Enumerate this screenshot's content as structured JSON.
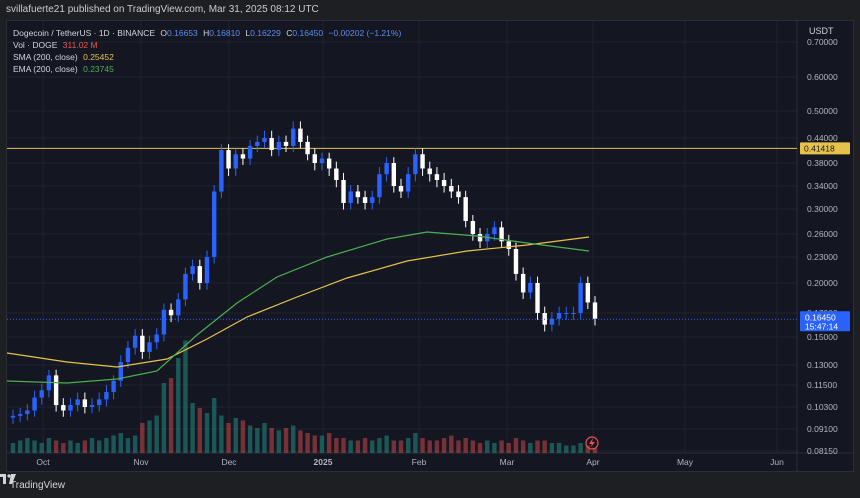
{
  "header": {
    "published_by": "svillafuerte21 published on TradingView.com, Mar 31, 2025 08:12 UTC"
  },
  "legend": {
    "symbol": "Dogecoin / TetherUS · 1D · BINANCE",
    "open_label": "O",
    "open": "0.16653",
    "high_label": "H",
    "high": "0.16810",
    "low_label": "L",
    "low": "0.16229",
    "close_label": "C",
    "close": "0.16450",
    "change": "−0.00202 (−1.21%)",
    "vol_label": "Vol · DOGE",
    "vol_value": "311.02 M",
    "sma_label": "SMA (200, close)",
    "sma_value": "0.25452",
    "ema_label": "EMA (200, close)",
    "ema_value": "0.23745"
  },
  "price_axis": {
    "unit": "USDT",
    "ticks": [
      "0.70000",
      "0.60000",
      "0.50000",
      "0.44000",
      "0.38000",
      "0.34000",
      "0.30000",
      "0.26000",
      "0.23000",
      "0.20000",
      "0.17000",
      "0.15000",
      "0.13000",
      "0.11500",
      "0.10300",
      "0.09100",
      "0.08150"
    ]
  },
  "level_tag": "0.41418",
  "price_tag": {
    "price": "0.16450",
    "countdown": "15:47:14"
  },
  "time_axis": [
    "Oct",
    "Nov",
    "Dec",
    "2025",
    "Feb",
    "Mar",
    "Apr",
    "May",
    "Jun"
  ],
  "footer": {
    "brand": "TradingView"
  },
  "colors": {
    "up": "#2962ff",
    "down": "#ffffff",
    "sma": "#e6c24b",
    "ema": "#4caf50",
    "level": "#e6c24b"
  },
  "chart_data": {
    "type": "candlestick",
    "ticks": [
      0.7,
      0.6,
      0.5,
      0.44,
      0.38,
      0.34,
      0.3,
      0.26,
      0.23,
      0.2,
      0.17,
      0.15,
      0.13,
      0.115,
      0.103,
      0.091,
      0.0815
    ],
    "level": 0.41418,
    "last": 0.1645,
    "closes": [
      0.098,
      0.099,
      0.101,
      0.108,
      0.112,
      0.122,
      0.104,
      0.101,
      0.104,
      0.107,
      0.103,
      0.104,
      0.107,
      0.111,
      0.118,
      0.132,
      0.142,
      0.151,
      0.139,
      0.146,
      0.152,
      0.173,
      0.168,
      0.183,
      0.21,
      0.219,
      0.2,
      0.23,
      0.33,
      0.41,
      0.37,
      0.4,
      0.39,
      0.42,
      0.43,
      0.44,
      0.41,
      0.43,
      0.42,
      0.46,
      0.43,
      0.4,
      0.38,
      0.39,
      0.37,
      0.35,
      0.31,
      0.33,
      0.32,
      0.31,
      0.32,
      0.36,
      0.38,
      0.34,
      0.33,
      0.36,
      0.4,
      0.37,
      0.36,
      0.35,
      0.34,
      0.33,
      0.32,
      0.28,
      0.26,
      0.25,
      0.26,
      0.27,
      0.25,
      0.24,
      0.21,
      0.19,
      0.2,
      0.17,
      0.16,
      0.165,
      0.17,
      0.17,
      0.17,
      0.2,
      0.18,
      0.165
    ],
    "volumes": [
      0.04,
      0.05,
      0.06,
      0.05,
      0.04,
      0.06,
      0.05,
      0.04,
      0.05,
      0.04,
      0.05,
      0.06,
      0.05,
      0.06,
      0.07,
      0.08,
      0.06,
      0.07,
      0.12,
      0.13,
      0.15,
      0.28,
      0.3,
      0.38,
      0.45,
      0.2,
      0.18,
      0.16,
      0.22,
      0.15,
      0.12,
      0.14,
      0.13,
      0.11,
      0.1,
      0.12,
      0.1,
      0.09,
      0.1,
      0.11,
      0.09,
      0.08,
      0.07,
      0.07,
      0.08,
      0.06,
      0.06,
      0.05,
      0.05,
      0.06,
      0.05,
      0.06,
      0.07,
      0.05,
      0.05,
      0.06,
      0.08,
      0.06,
      0.05,
      0.05,
      0.06,
      0.07,
      0.05,
      0.06,
      0.05,
      0.04,
      0.05,
      0.04,
      0.05,
      0.04,
      0.06,
      0.05,
      0.04,
      0.05,
      0.05,
      0.04,
      0.04,
      0.03,
      0.03,
      0.04,
      0.03,
      0.02
    ]
  }
}
